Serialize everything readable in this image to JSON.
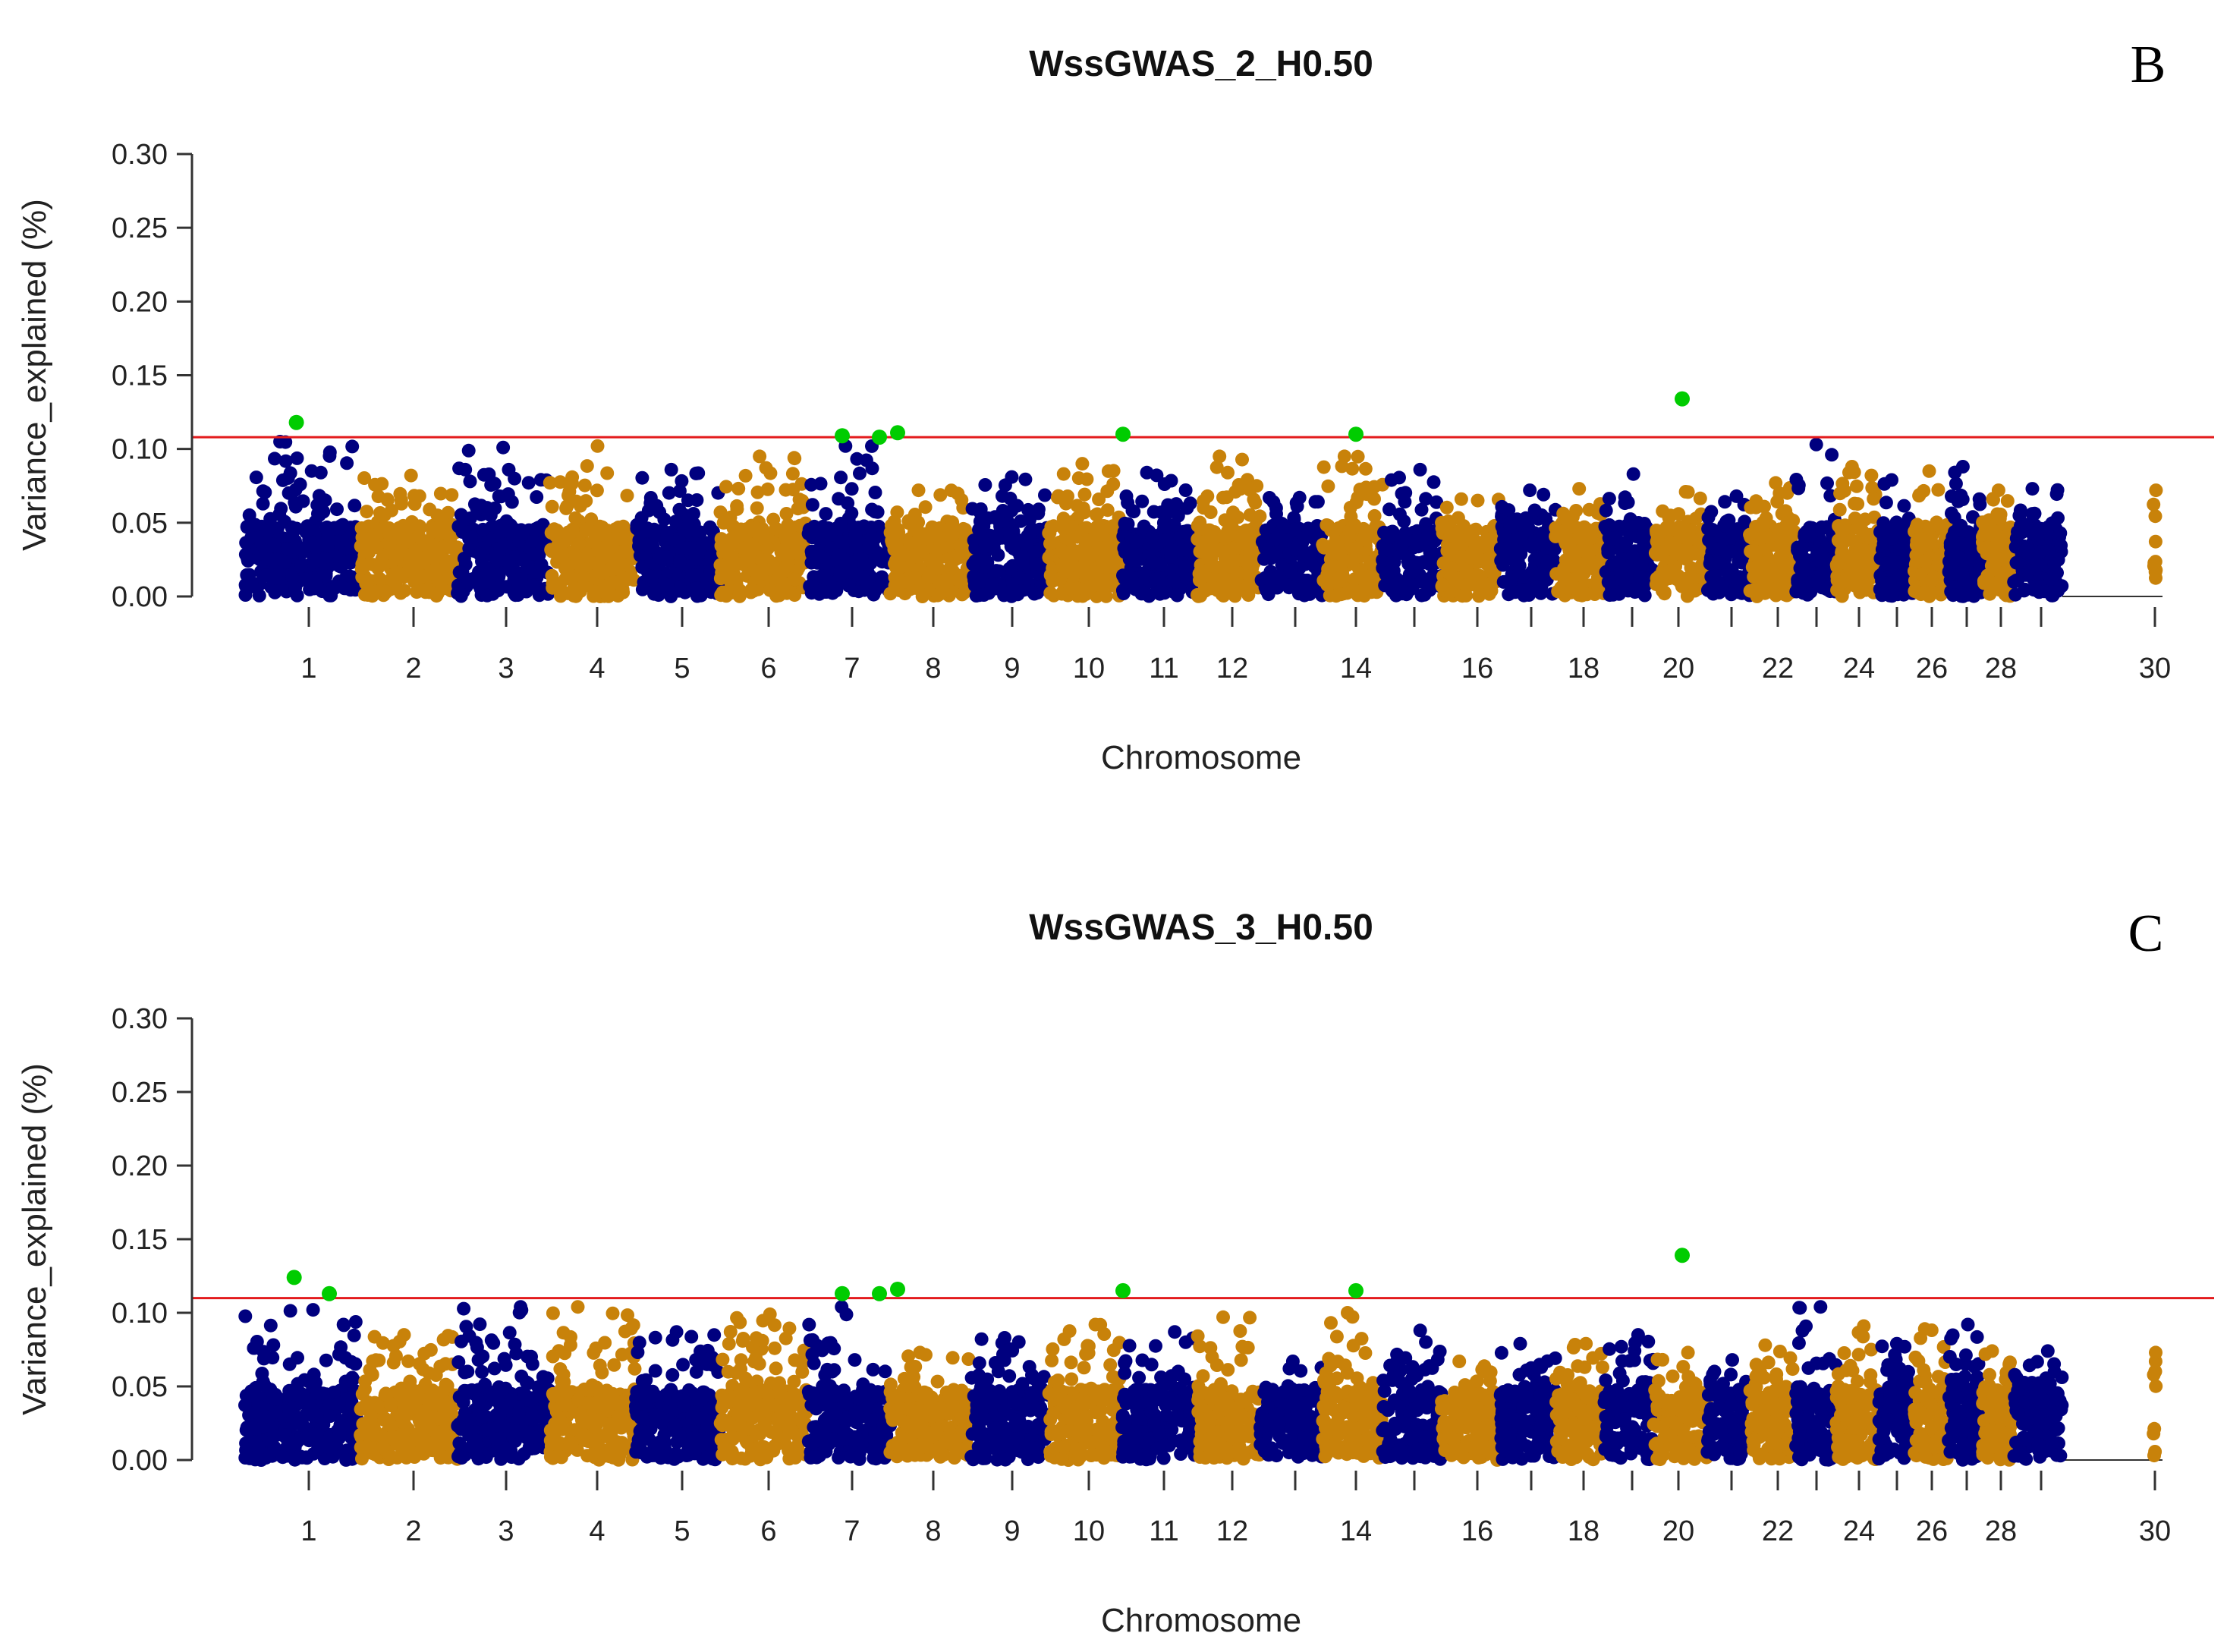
{
  "chart_data": [
    {
      "type": "scatter",
      "panel_label": "B",
      "title": "WssGWAS_2_H0.50",
      "xlabel": "Chromosome",
      "ylabel": "Variance_explained (%)",
      "ylim": [
        0,
        0.3
      ],
      "yticks": [
        "0.00",
        "0.05",
        "0.10",
        "0.15",
        "0.20",
        "0.25",
        "0.30"
      ],
      "xticks": [
        "1",
        "2",
        "3",
        "4",
        "5",
        "6",
        "7",
        "8",
        "9",
        "10",
        "11",
        "12",
        "14",
        "16",
        "18",
        "20",
        "22",
        "24",
        "26",
        "28",
        "30"
      ],
      "threshold": 0.108,
      "chromosome_peaks": [
        {
          "chromosome": "1",
          "max": 0.105
        },
        {
          "chromosome": "2",
          "max": 0.082
        },
        {
          "chromosome": "3",
          "max": 0.101
        },
        {
          "chromosome": "4",
          "max": 0.102
        },
        {
          "chromosome": "5",
          "max": 0.086
        },
        {
          "chromosome": "6",
          "max": 0.095
        },
        {
          "chromosome": "7",
          "max": 0.102
        },
        {
          "chromosome": "8",
          "max": 0.072
        },
        {
          "chromosome": "9",
          "max": 0.081
        },
        {
          "chromosome": "10",
          "max": 0.09
        },
        {
          "chromosome": "11",
          "max": 0.084
        },
        {
          "chromosome": "12",
          "max": 0.095
        },
        {
          "chromosome": "13",
          "max": 0.067
        },
        {
          "chromosome": "14",
          "max": 0.095
        },
        {
          "chromosome": "15",
          "max": 0.086
        },
        {
          "chromosome": "16",
          "max": 0.066
        },
        {
          "chromosome": "17",
          "max": 0.072
        },
        {
          "chromosome": "18",
          "max": 0.073
        },
        {
          "chromosome": "19",
          "max": 0.083
        },
        {
          "chromosome": "20",
          "max": 0.071
        },
        {
          "chromosome": "21",
          "max": 0.068
        },
        {
          "chromosome": "22",
          "max": 0.077
        },
        {
          "chromosome": "23",
          "max": 0.103
        },
        {
          "chromosome": "24",
          "max": 0.088
        },
        {
          "chromosome": "25",
          "max": 0.079
        },
        {
          "chromosome": "26",
          "max": 0.085
        },
        {
          "chromosome": "27",
          "max": 0.088
        },
        {
          "chromosome": "28",
          "max": 0.072
        },
        {
          "chromosome": "29",
          "max": 0.073
        },
        {
          "chromosome": "30",
          "max": 0.072
        }
      ],
      "significant_points": [
        {
          "chromosome": "1",
          "value": 0.118
        },
        {
          "chromosome": "7",
          "value": 0.109
        },
        {
          "chromosome": "7",
          "value": 0.108
        },
        {
          "chromosome": "8",
          "value": 0.111
        },
        {
          "chromosome": "11",
          "value": 0.11
        },
        {
          "chromosome": "14",
          "value": 0.11
        },
        {
          "chromosome": "20",
          "value": 0.134
        }
      ],
      "colors": {
        "odd": "#00007F",
        "even": "#C8820A",
        "significant": "#00CC00",
        "threshold": "#E31A1C"
      }
    },
    {
      "type": "scatter",
      "panel_label": "C",
      "title": "WssGWAS_3_H0.50",
      "xlabel": "Chromosome",
      "ylabel": "Variance_explained (%)",
      "ylim": [
        0,
        0.3
      ],
      "yticks": [
        "0.00",
        "0.05",
        "0.10",
        "0.15",
        "0.20",
        "0.25",
        "0.30"
      ],
      "xticks": [
        "1",
        "2",
        "3",
        "4",
        "5",
        "6",
        "7",
        "8",
        "9",
        "10",
        "11",
        "12",
        "14",
        "16",
        "18",
        "20",
        "22",
        "24",
        "26",
        "28",
        "30"
      ],
      "threshold": 0.11,
      "chromosome_peaks": [
        {
          "chromosome": "1",
          "max": 0.102
        },
        {
          "chromosome": "2",
          "max": 0.085
        },
        {
          "chromosome": "3",
          "max": 0.104
        },
        {
          "chromosome": "4",
          "max": 0.104
        },
        {
          "chromosome": "5",
          "max": 0.087
        },
        {
          "chromosome": "6",
          "max": 0.099
        },
        {
          "chromosome": "7",
          "max": 0.104
        },
        {
          "chromosome": "8",
          "max": 0.073
        },
        {
          "chromosome": "9",
          "max": 0.083
        },
        {
          "chromosome": "10",
          "max": 0.092
        },
        {
          "chromosome": "11",
          "max": 0.087
        },
        {
          "chromosome": "12",
          "max": 0.097
        },
        {
          "chromosome": "13",
          "max": 0.067
        },
        {
          "chromosome": "14",
          "max": 0.1
        },
        {
          "chromosome": "15",
          "max": 0.088
        },
        {
          "chromosome": "16",
          "max": 0.067
        },
        {
          "chromosome": "17",
          "max": 0.079
        },
        {
          "chromosome": "18",
          "max": 0.079
        },
        {
          "chromosome": "19",
          "max": 0.085
        },
        {
          "chromosome": "20",
          "max": 0.073
        },
        {
          "chromosome": "21",
          "max": 0.068
        },
        {
          "chromosome": "22",
          "max": 0.078
        },
        {
          "chromosome": "23",
          "max": 0.104
        },
        {
          "chromosome": "24",
          "max": 0.091
        },
        {
          "chromosome": "25",
          "max": 0.079
        },
        {
          "chromosome": "26",
          "max": 0.089
        },
        {
          "chromosome": "27",
          "max": 0.092
        },
        {
          "chromosome": "28",
          "max": 0.074
        },
        {
          "chromosome": "29",
          "max": 0.074
        },
        {
          "chromosome": "30",
          "max": 0.073
        }
      ],
      "significant_points": [
        {
          "chromosome": "1",
          "value": 0.124
        },
        {
          "chromosome": "2",
          "value": 0.113
        },
        {
          "chromosome": "7",
          "value": 0.113
        },
        {
          "chromosome": "7",
          "value": 0.113
        },
        {
          "chromosome": "8",
          "value": 0.116
        },
        {
          "chromosome": "11",
          "value": 0.115
        },
        {
          "chromosome": "14",
          "value": 0.115
        },
        {
          "chromosome": "20",
          "value": 0.139
        }
      ],
      "colors": {
        "odd": "#00007F",
        "even": "#C8820A",
        "significant": "#00CC00",
        "threshold": "#E31A1C"
      }
    }
  ]
}
